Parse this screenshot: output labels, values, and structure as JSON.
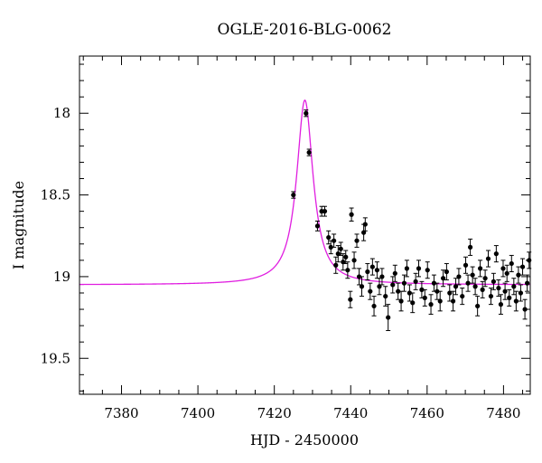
{
  "chart_data": {
    "type": "scatter",
    "title": "OGLE-2016-BLG-0062",
    "xlabel": "HJD - 2450000",
    "ylabel": "I magnitude",
    "xlim": [
      7369,
      7487
    ],
    "ylim": [
      19.72,
      17.65
    ],
    "y_inverted": true,
    "grid": false,
    "legend": "none",
    "xticks": [
      7380,
      7400,
      7420,
      7440,
      7460,
      7480
    ],
    "yticks": [
      18,
      18.5,
      19,
      19.5
    ],
    "colors": {
      "model": "#e01ee0",
      "points": "#000000"
    },
    "model": {
      "name": "",
      "baseline_mag": 19.05,
      "peak_time": 7428.0,
      "peak_mag": 17.92,
      "width": 2.6
    },
    "series": [
      {
        "name": "",
        "points": [
          [
            7425.0,
            18.5,
            0.02
          ],
          [
            7428.3,
            18.0,
            0.02
          ],
          [
            7429.1,
            18.24,
            0.02
          ],
          [
            7431.3,
            18.69,
            0.03
          ],
          [
            7432.4,
            18.6,
            0.03
          ],
          [
            7433.2,
            18.6,
            0.03
          ],
          [
            7434.2,
            18.76,
            0.04
          ],
          [
            7434.8,
            18.82,
            0.04
          ],
          [
            7435.6,
            18.78,
            0.04
          ],
          [
            7436.1,
            18.93,
            0.05
          ],
          [
            7436.7,
            18.86,
            0.05
          ],
          [
            7437.4,
            18.83,
            0.04
          ],
          [
            7438.0,
            18.91,
            0.05
          ],
          [
            7438.7,
            18.88,
            0.04
          ],
          [
            7439.2,
            18.96,
            0.05
          ],
          [
            7439.9,
            19.14,
            0.05
          ],
          [
            7440.2,
            18.62,
            0.04
          ],
          [
            7440.9,
            18.9,
            0.05
          ],
          [
            7441.6,
            18.78,
            0.04
          ],
          [
            7442.2,
            19.0,
            0.05
          ],
          [
            7442.9,
            19.06,
            0.06
          ],
          [
            7443.4,
            18.73,
            0.05
          ],
          [
            7443.8,
            18.68,
            0.04
          ],
          [
            7444.4,
            18.97,
            0.05
          ],
          [
            7445.1,
            19.09,
            0.05
          ],
          [
            7445.7,
            18.94,
            0.05
          ],
          [
            7446.1,
            19.18,
            0.06
          ],
          [
            7446.9,
            18.96,
            0.05
          ],
          [
            7447.5,
            19.06,
            0.05
          ],
          [
            7448.2,
            19.0,
            0.05
          ],
          [
            7449.1,
            19.12,
            0.06
          ],
          [
            7449.8,
            19.25,
            0.08
          ],
          [
            7451.0,
            19.05,
            0.05
          ],
          [
            7451.6,
            18.98,
            0.05
          ],
          [
            7452.4,
            19.09,
            0.05
          ],
          [
            7453.2,
            19.15,
            0.06
          ],
          [
            7454.0,
            19.04,
            0.05
          ],
          [
            7454.7,
            18.95,
            0.05
          ],
          [
            7455.4,
            19.1,
            0.05
          ],
          [
            7456.2,
            19.16,
            0.06
          ],
          [
            7457.0,
            19.03,
            0.05
          ],
          [
            7457.8,
            18.95,
            0.05
          ],
          [
            7458.6,
            19.08,
            0.05
          ],
          [
            7459.4,
            19.13,
            0.05
          ],
          [
            7460.1,
            18.96,
            0.05
          ],
          [
            7461.0,
            19.17,
            0.06
          ],
          [
            7461.8,
            19.04,
            0.05
          ],
          [
            7462.6,
            19.09,
            0.05
          ],
          [
            7463.4,
            19.15,
            0.06
          ],
          [
            7464.2,
            19.01,
            0.05
          ],
          [
            7465.1,
            18.97,
            0.05
          ],
          [
            7465.9,
            19.1,
            0.05
          ],
          [
            7466.8,
            19.15,
            0.06
          ],
          [
            7467.5,
            19.06,
            0.05
          ],
          [
            7468.3,
            19.0,
            0.05
          ],
          [
            7469.2,
            19.12,
            0.05
          ],
          [
            7470.1,
            18.93,
            0.05
          ],
          [
            7470.7,
            19.04,
            0.05
          ],
          [
            7471.3,
            18.82,
            0.05
          ],
          [
            7471.9,
            18.99,
            0.05
          ],
          [
            7472.6,
            19.06,
            0.05
          ],
          [
            7473.2,
            19.18,
            0.06
          ],
          [
            7473.9,
            18.95,
            0.05
          ],
          [
            7474.5,
            19.08,
            0.05
          ],
          [
            7475.2,
            19.01,
            0.05
          ],
          [
            7476.0,
            18.89,
            0.05
          ],
          [
            7476.7,
            19.12,
            0.05
          ],
          [
            7477.4,
            19.03,
            0.05
          ],
          [
            7478.1,
            18.86,
            0.05
          ],
          [
            7478.7,
            19.07,
            0.05
          ],
          [
            7479.3,
            19.17,
            0.06
          ],
          [
            7479.9,
            18.95,
            0.05
          ],
          [
            7480.4,
            19.09,
            0.05
          ],
          [
            7480.9,
            18.98,
            0.05
          ],
          [
            7481.5,
            19.13,
            0.05
          ],
          [
            7482.1,
            18.92,
            0.05
          ],
          [
            7482.7,
            19.06,
            0.05
          ],
          [
            7483.3,
            19.15,
            0.06
          ],
          [
            7483.9,
            18.99,
            0.05
          ],
          [
            7484.5,
            19.1,
            0.05
          ],
          [
            7485.0,
            18.94,
            0.05
          ],
          [
            7485.6,
            19.2,
            0.06
          ],
          [
            7486.2,
            19.04,
            0.05
          ],
          [
            7486.7,
            18.9,
            0.05
          ]
        ]
      }
    ]
  }
}
